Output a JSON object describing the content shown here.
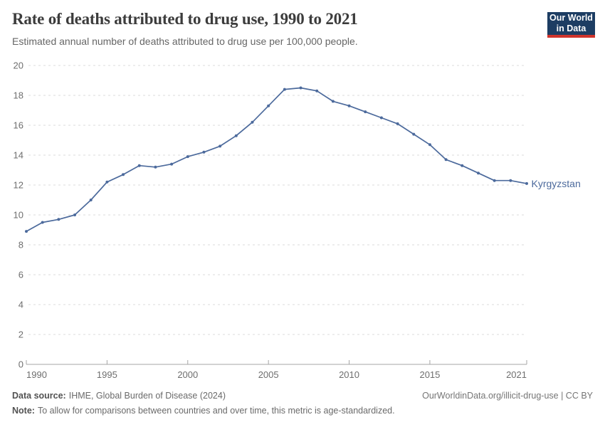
{
  "header": {
    "title": "Rate of deaths attributed to drug use, 1990 to 2021",
    "subtitle": "Estimated annual number of deaths attributed to drug use per 100,000 people.",
    "logo": {
      "line1": "Our World",
      "line2": "in Data"
    }
  },
  "chart_data": {
    "type": "line",
    "title": "Rate of deaths attributed to drug use, 1990 to 2021",
    "xlabel": "",
    "ylabel": "",
    "xlim": [
      1990,
      2021
    ],
    "ylim": [
      0,
      20
    ],
    "x_ticks": [
      1990,
      1995,
      2000,
      2005,
      2010,
      2015,
      2021
    ],
    "y_ticks": [
      0,
      2,
      4,
      6,
      8,
      10,
      12,
      14,
      16,
      18,
      20
    ],
    "grid": "horizontal-dashed",
    "legend": "end-of-line-label",
    "x": [
      1990,
      1991,
      1992,
      1993,
      1994,
      1995,
      1996,
      1997,
      1998,
      1999,
      2000,
      2001,
      2002,
      2003,
      2004,
      2005,
      2006,
      2007,
      2008,
      2009,
      2010,
      2011,
      2012,
      2013,
      2014,
      2015,
      2016,
      2017,
      2018,
      2019,
      2020,
      2021
    ],
    "series": [
      {
        "name": "Kyrgyzstan",
        "color": "#4c6a9c",
        "values": [
          8.9,
          9.5,
          9.7,
          10.0,
          11.0,
          12.2,
          12.7,
          13.3,
          13.2,
          13.4,
          13.9,
          14.2,
          14.6,
          15.3,
          16.2,
          17.3,
          18.4,
          18.5,
          18.3,
          17.6,
          17.3,
          16.9,
          16.5,
          16.1,
          15.4,
          14.7,
          13.7,
          13.3,
          12.8,
          12.3,
          12.3,
          12.1
        ]
      }
    ]
  },
  "footer": {
    "source_label": "Data source:",
    "source_text": "IHME, Global Burden of Disease (2024)",
    "note_label": "Note:",
    "note_text": "To allow for comparisons between countries and over time, this metric is age-standardized.",
    "attribution": "OurWorldinData.org/illicit-drug-use | CC BY"
  },
  "colors": {
    "line": "#4c6a9c",
    "grid": "#dbdbdb",
    "axis": "#a5a5a5",
    "tick_label": "#6e6e6e",
    "title": "#3c3c3c",
    "subtitle": "#666666",
    "logo_bg": "#1d3d63",
    "logo_red": "#d0342c"
  }
}
